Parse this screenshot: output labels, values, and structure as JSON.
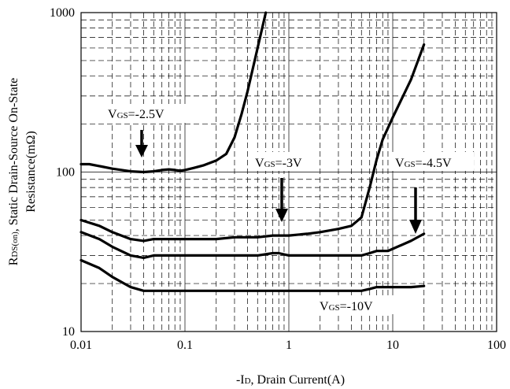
{
  "chart_data": {
    "type": "line",
    "x_scale": "log",
    "y_scale": "log",
    "xlim": [
      0.01,
      100
    ],
    "ylim": [
      10,
      1000
    ],
    "grid": true,
    "legend": "none",
    "x_ticks": [
      "0.01",
      "0.1",
      "1",
      "10",
      "100"
    ],
    "y_ticks": [
      "10",
      "100",
      "1000"
    ],
    "xlabel": {
      "prefix": "-I",
      "sub": "D",
      "rest": ", Drain Current(A)"
    },
    "ylabel": {
      "line1": {
        "prefix": "R",
        "sub": "DS(on)",
        "rest": ", Static Drain-Source On-State"
      },
      "line2": "Resistance(mΩ)"
    },
    "annotations": [
      {
        "prefix": "V",
        "sub": "GS",
        "rest": "=-2.5V"
      },
      {
        "prefix": "V",
        "sub": "GS",
        "rest": "=-3V"
      },
      {
        "prefix": "V",
        "sub": "GS",
        "rest": "=-4.5V"
      },
      {
        "prefix": "V",
        "sub": "GS",
        "rest": "=-10V"
      }
    ],
    "series": [
      {
        "points": [
          [
            0.01,
            112
          ],
          [
            0.012,
            112
          ],
          [
            0.015,
            109
          ],
          [
            0.02,
            105
          ],
          [
            0.03,
            101
          ],
          [
            0.04,
            100
          ],
          [
            0.05,
            101
          ],
          [
            0.06,
            103
          ],
          [
            0.07,
            104
          ],
          [
            0.08,
            103
          ],
          [
            0.09,
            102
          ],
          [
            0.1,
            103
          ],
          [
            0.12,
            106
          ],
          [
            0.15,
            110
          ],
          [
            0.2,
            118
          ],
          [
            0.25,
            130
          ],
          [
            0.3,
            165
          ],
          [
            0.35,
            230
          ],
          [
            0.4,
            320
          ],
          [
            0.5,
            600
          ],
          [
            0.6,
            1000
          ]
        ]
      },
      {
        "points": [
          [
            0.01,
            50
          ],
          [
            0.015,
            46
          ],
          [
            0.02,
            42
          ],
          [
            0.03,
            38
          ],
          [
            0.04,
            37
          ],
          [
            0.05,
            38
          ],
          [
            0.07,
            38
          ],
          [
            0.1,
            38
          ],
          [
            0.15,
            38
          ],
          [
            0.2,
            38
          ],
          [
            0.3,
            39
          ],
          [
            0.5,
            39
          ],
          [
            0.7,
            40
          ],
          [
            0.8,
            40
          ],
          [
            1,
            40
          ],
          [
            1.5,
            41
          ],
          [
            2,
            42
          ],
          [
            3,
            44
          ],
          [
            4,
            46
          ],
          [
            5,
            52
          ],
          [
            6,
            80
          ],
          [
            7,
            120
          ],
          [
            8,
            160
          ],
          [
            10,
            220
          ],
          [
            15,
            380
          ],
          [
            20,
            630
          ]
        ]
      },
      {
        "points": [
          [
            0.01,
            42
          ],
          [
            0.015,
            38
          ],
          [
            0.02,
            34
          ],
          [
            0.03,
            30
          ],
          [
            0.04,
            29
          ],
          [
            0.05,
            30
          ],
          [
            0.07,
            30
          ],
          [
            0.1,
            30
          ],
          [
            0.2,
            30
          ],
          [
            0.5,
            30
          ],
          [
            0.7,
            31
          ],
          [
            0.8,
            31
          ],
          [
            1,
            30
          ],
          [
            2,
            30
          ],
          [
            3,
            30
          ],
          [
            4,
            30
          ],
          [
            5,
            30
          ],
          [
            6,
            31
          ],
          [
            7,
            32
          ],
          [
            9,
            32
          ],
          [
            10,
            33
          ],
          [
            15,
            37
          ],
          [
            20,
            41
          ]
        ]
      },
      {
        "points": [
          [
            0.01,
            28
          ],
          [
            0.015,
            25
          ],
          [
            0.02,
            22
          ],
          [
            0.03,
            19
          ],
          [
            0.04,
            18
          ],
          [
            0.05,
            18
          ],
          [
            0.07,
            18
          ],
          [
            0.1,
            18
          ],
          [
            0.2,
            18
          ],
          [
            0.5,
            18
          ],
          [
            1,
            18
          ],
          [
            2,
            18
          ],
          [
            3,
            18
          ],
          [
            5,
            18
          ],
          [
            6,
            18.5
          ],
          [
            7,
            19
          ],
          [
            10,
            19
          ],
          [
            15,
            19
          ],
          [
            20,
            19.3
          ]
        ]
      }
    ]
  }
}
